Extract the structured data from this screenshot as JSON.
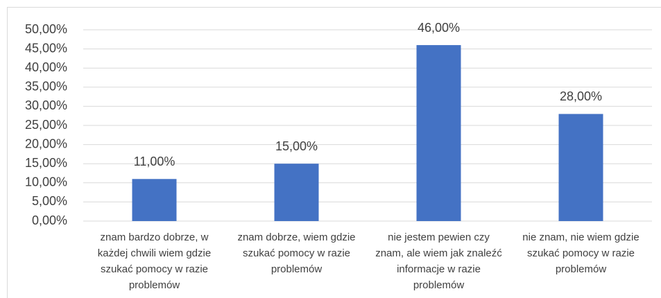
{
  "chart_data": {
    "type": "bar",
    "categories": [
      "znam bardzo dobrze, w każdej chwili wiem gdzie szukać pomocy w razie problemów",
      "znam dobrze, wiem gdzie szukać pomocy w razie problemów",
      "nie jestem pewien czy znam, ale wiem jak znaleźć informacje w razie problemów",
      "nie znam, nie wiem gdzie szukać pomocy w razie problemów"
    ],
    "values": [
      11,
      15,
      46,
      28
    ],
    "value_labels": [
      "11,00%",
      "15,00%",
      "46,00%",
      "28,00%"
    ],
    "color": "#4472c4",
    "ylim": [
      0,
      50
    ],
    "yticks": [
      {
        "value": 0,
        "label": "0,00%"
      },
      {
        "value": 5,
        "label": "5,00%"
      },
      {
        "value": 10,
        "label": "10,00%"
      },
      {
        "value": 15,
        "label": "15,00%"
      },
      {
        "value": 20,
        "label": "20,00%"
      },
      {
        "value": 25,
        "label": "25,00%"
      },
      {
        "value": 30,
        "label": "30,00%"
      },
      {
        "value": 35,
        "label": "35,00%"
      },
      {
        "value": 40,
        "label": "40,00%"
      },
      {
        "value": 45,
        "label": "45,00%"
      },
      {
        "value": 50,
        "label": "50,00%"
      }
    ],
    "grid": true
  }
}
